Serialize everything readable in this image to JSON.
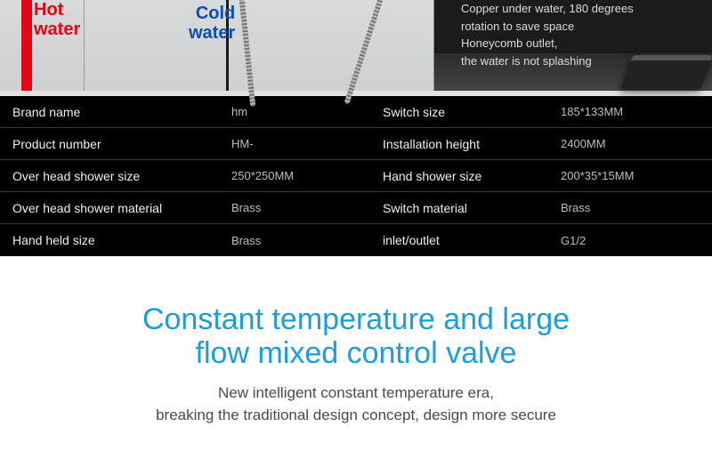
{
  "hero": {
    "hot_label_line1": "Hot",
    "hot_label_line2": "water",
    "cold_label_line1": "Cold",
    "cold_label_line2": "water",
    "right_text_line1": "Copper under water, 180 degrees",
    "right_text_line2": "rotation to save space",
    "right_text_line3": "Honeycomb outlet,",
    "right_text_line4": "the water is not splashing",
    "hot_color": "#e30613",
    "cold_color": "#0b4db0"
  },
  "spec": {
    "rows": [
      {
        "l1": "Brand name",
        "v1": "hm",
        "l2": "Switch size",
        "v2": "185*133MM"
      },
      {
        "l1": "Product number",
        "v1": "HM-",
        "l2": "Installation height",
        "v2": "2400MM"
      },
      {
        "l1": "Over head shower size",
        "v1": "250*250MM",
        "l2": "Hand  shower size",
        "v2": "200*35*15MM"
      },
      {
        "l1": "Over head shower material",
        "v1": "Brass",
        "l2": "Switch material",
        "v2": "Brass"
      },
      {
        "l1": "Hand held size",
        "v1": "Brass",
        "l2": "inlet/outlet",
        "v2": "G1/2"
      }
    ],
    "bg_color": "#000000",
    "label_color": "#f0f0f0",
    "value_color": "#bdbdbd",
    "row_border_color": "#3a3a3a"
  },
  "promo": {
    "title_line1": "Constant temperature and large",
    "title_line2": "flow mixed control valve",
    "sub_line1": "New intelligent constant temperature era,",
    "sub_line2": "breaking the traditional design concept, design more secure",
    "title_color": "#1d9dd9",
    "sub_color": "#4a4a4a",
    "title_fontsize": 34,
    "sub_fontsize": 17
  }
}
